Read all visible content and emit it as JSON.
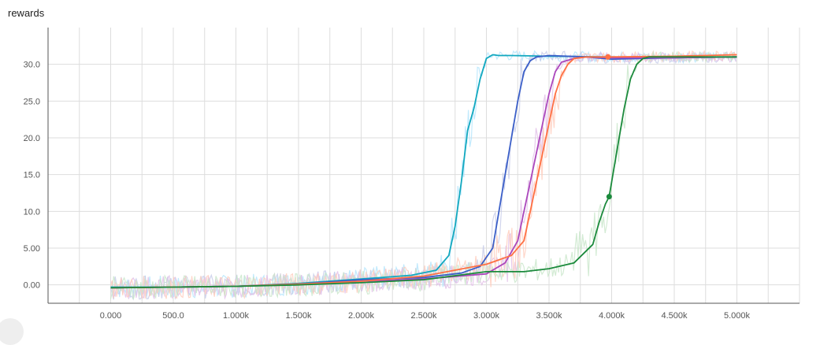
{
  "title": "rewards",
  "chart_data": {
    "type": "line",
    "title": "rewards",
    "xlabel": "",
    "ylabel": "",
    "xlim": [
      -500,
      5500
    ],
    "ylim": [
      -2.5,
      35
    ],
    "grid": true,
    "x_ticks": [
      0,
      500,
      1000,
      1500,
      2000,
      2500,
      3000,
      3500,
      4000,
      4500,
      5000
    ],
    "x_tick_labels": [
      "0.000",
      "500.0",
      "1.000k",
      "1.500k",
      "2.000k",
      "2.500k",
      "3.000k",
      "3.500k",
      "4.000k",
      "4.500k",
      "5.000k"
    ],
    "y_ticks": [
      0,
      5,
      10,
      15,
      20,
      25,
      30
    ],
    "y_tick_labels": [
      "0.00",
      "5.00",
      "10.0",
      "15.0",
      "20.0",
      "25.0",
      "30.0"
    ],
    "series": [
      {
        "color": "#12a8bf",
        "raw_color": "#b3e5fc",
        "x": [
          0,
          500,
          1000,
          1500,
          2000,
          2400,
          2600,
          2700,
          2750,
          2800,
          2850,
          2900,
          2950,
          3000,
          3050,
          3100,
          3200,
          3500,
          4000,
          4500,
          5000
        ],
        "y": [
          -0.3,
          -0.3,
          -0.2,
          0.2,
          0.8,
          1.3,
          2.0,
          4.0,
          8.0,
          14.0,
          21.0,
          24.0,
          28.0,
          30.8,
          31.3,
          31.2,
          31.2,
          31.1,
          31.0,
          30.9,
          31.0
        ]
      },
      {
        "color": "#3b5fc8",
        "raw_color": "#c5cae9",
        "x": [
          0,
          500,
          1000,
          1500,
          2000,
          2500,
          2800,
          2950,
          3050,
          3100,
          3150,
          3200,
          3250,
          3300,
          3350,
          3400,
          3500,
          3800,
          4000,
          4500,
          5000
        ],
        "y": [
          -0.4,
          -0.3,
          -0.2,
          0.1,
          0.7,
          1.0,
          1.6,
          2.5,
          5.0,
          10.0,
          15.0,
          20.0,
          25.0,
          29.0,
          30.5,
          31.0,
          31.2,
          31.0,
          30.7,
          30.9,
          31.0
        ]
      },
      {
        "color": "#ab47bc",
        "raw_color": "#e1bee7",
        "x": [
          0,
          500,
          1000,
          1500,
          2000,
          2500,
          3000,
          3150,
          3250,
          3300,
          3350,
          3400,
          3450,
          3500,
          3550,
          3600,
          3700,
          3800,
          4000,
          4500,
          5000
        ],
        "y": [
          -0.4,
          -0.3,
          -0.2,
          0.1,
          0.5,
          0.8,
          1.5,
          3.0,
          6.0,
          10.0,
          14.0,
          18.0,
          22.0,
          26.0,
          29.0,
          30.3,
          30.8,
          31.0,
          30.9,
          30.9,
          31.0
        ]
      },
      {
        "color": "#ff7043",
        "raw_color": "#ffccbc",
        "x": [
          0,
          500,
          1000,
          1500,
          2000,
          2500,
          3000,
          3200,
          3300,
          3350,
          3400,
          3450,
          3500,
          3550,
          3600,
          3650,
          3700,
          3800,
          3970,
          4500,
          5000
        ],
        "y": [
          -0.4,
          -0.3,
          -0.2,
          0.1,
          0.5,
          1.2,
          2.8,
          4.0,
          6.0,
          10.0,
          14.0,
          18.0,
          22.0,
          26.0,
          28.5,
          30.0,
          30.8,
          31.0,
          31.0,
          31.1,
          31.3
        ]
      },
      {
        "color": "#1b8a3c",
        "raw_color": "#c8e6c9",
        "x": [
          0,
          500,
          1000,
          1500,
          2000,
          2500,
          3000,
          3300,
          3500,
          3700,
          3850,
          3900,
          3950,
          3980,
          4000,
          4050,
          4100,
          4150,
          4200,
          4250,
          4300,
          4500,
          5000
        ],
        "y": [
          -0.4,
          -0.3,
          -0.2,
          0.0,
          0.3,
          0.7,
          1.8,
          1.8,
          2.2,
          3.0,
          5.5,
          8.5,
          11.0,
          12.0,
          14.0,
          19.0,
          24.0,
          28.0,
          30.0,
          30.8,
          31.0,
          31.0,
          31.0
        ]
      }
    ],
    "highlight_points": [
      {
        "series_index": 3,
        "x": 3970,
        "y": 31.0
      },
      {
        "series_index": 4,
        "x": 3980,
        "y": 12.0
      }
    ]
  }
}
